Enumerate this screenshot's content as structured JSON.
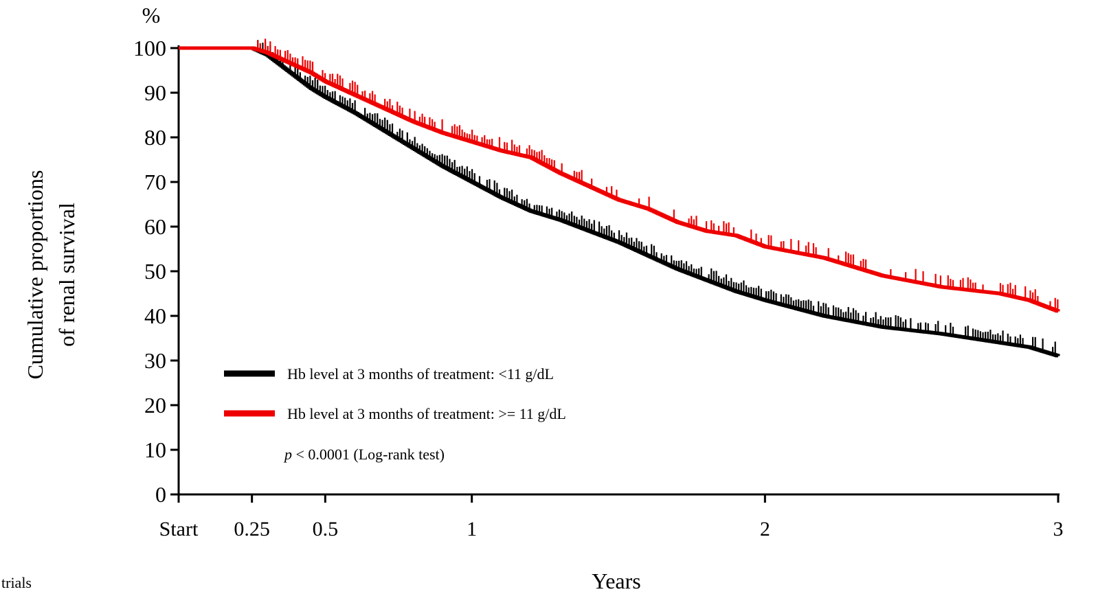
{
  "chart_data": {
    "type": "line",
    "subtype": "kaplan-meier step curves with censor ticks",
    "y_unit_label": "%",
    "ylabel_line1": "Cumulative proportions",
    "ylabel_line2": "of renal survival",
    "xlabel": "Years",
    "ylim": [
      0,
      100
    ],
    "xlim": [
      0,
      3
    ],
    "y_ticks": [
      0,
      10,
      20,
      30,
      40,
      50,
      60,
      70,
      80,
      90,
      100
    ],
    "x_ticks": [
      {
        "value": 0,
        "label": "Start"
      },
      {
        "value": 0.25,
        "label": "0.25"
      },
      {
        "value": 0.5,
        "label": "0.5"
      },
      {
        "value": 1,
        "label": "1"
      },
      {
        "value": 2,
        "label": "2"
      },
      {
        "value": 3,
        "label": "3"
      }
    ],
    "grid": false,
    "legend_position": "bottom-left",
    "annotation_p": "p",
    "annotation_rest": " < 0.0001 (Log-rank test)",
    "series": [
      {
        "name": "Hb level at 3 months of treatment: <11 g/dL",
        "color": "#000000",
        "x": [
          0,
          0.25,
          0.3,
          0.35,
          0.4,
          0.45,
          0.5,
          0.6,
          0.7,
          0.8,
          0.9,
          1.0,
          1.1,
          1.2,
          1.3,
          1.4,
          1.5,
          1.6,
          1.7,
          1.8,
          1.9,
          2.0,
          2.2,
          2.4,
          2.6,
          2.8,
          2.9,
          3.0
        ],
        "y": [
          100,
          100,
          98.5,
          96,
          93.5,
          91,
          89,
          85.5,
          81.5,
          77.5,
          73.5,
          70,
          66.5,
          63.5,
          61.5,
          59,
          56.5,
          53.5,
          50.5,
          48,
          45.5,
          43.5,
          40,
          37.5,
          36,
          34,
          33,
          31
        ]
      },
      {
        "name": "Hb level at 3 months of treatment: >= 11 g/dL",
        "color": "#ee0000",
        "x": [
          0,
          0.25,
          0.3,
          0.35,
          0.4,
          0.45,
          0.5,
          0.6,
          0.7,
          0.8,
          0.9,
          1.0,
          1.1,
          1.2,
          1.3,
          1.4,
          1.5,
          1.6,
          1.7,
          1.8,
          1.9,
          2.0,
          2.2,
          2.4,
          2.6,
          2.8,
          2.9,
          3.0
        ],
        "y": [
          100,
          100,
          99,
          97.5,
          96,
          94.5,
          92.5,
          89.5,
          86.5,
          83.5,
          81,
          79,
          77,
          75.5,
          72,
          69,
          66,
          64,
          61,
          59,
          58,
          55.5,
          53,
          49,
          46.5,
          45,
          43.5,
          41
        ]
      }
    ]
  },
  "page": {
    "corner_text": "trials"
  }
}
